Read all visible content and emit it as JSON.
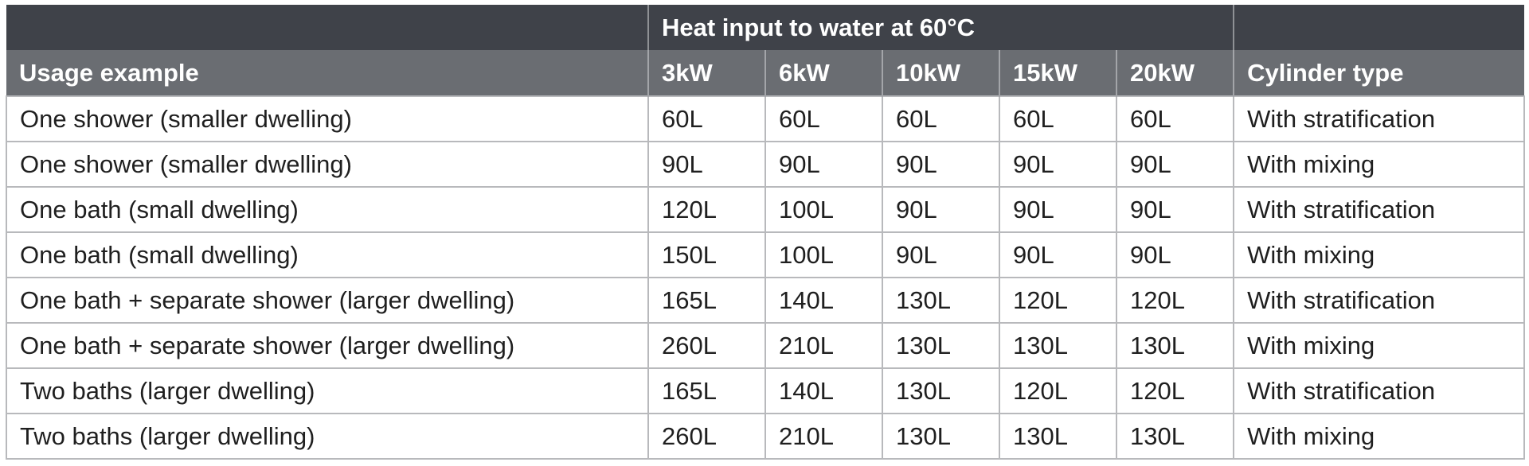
{
  "table": {
    "group_header": {
      "left": "",
      "heat_input": "Heat input to water at 60°C",
      "right": ""
    },
    "columns": [
      "Usage example",
      "3kW",
      "6kW",
      "10kW",
      "15kW",
      "20kW",
      "Cylinder type"
    ],
    "rows": [
      [
        "One shower (smaller dwelling)",
        "60L",
        "60L",
        "60L",
        "60L",
        "60L",
        "With stratification"
      ],
      [
        "One shower (smaller dwelling)",
        "90L",
        "90L",
        "90L",
        "90L",
        "90L",
        "With mixing"
      ],
      [
        "One bath (small dwelling)",
        "120L",
        "100L",
        "90L",
        "90L",
        "90L",
        "With stratification"
      ],
      [
        "One bath (small dwelling)",
        "150L",
        "100L",
        "90L",
        "90L",
        "90L",
        "With mixing"
      ],
      [
        "One bath + separate shower (larger dwelling)",
        "165L",
        "140L",
        "130L",
        "120L",
        "120L",
        "With stratification"
      ],
      [
        "One bath + separate shower (larger dwelling)",
        "260L",
        "210L",
        "130L",
        "130L",
        "130L",
        "With mixing"
      ],
      [
        "Two baths (larger dwelling)",
        "165L",
        "140L",
        "130L",
        "120L",
        "120L",
        "With stratification"
      ],
      [
        "Two baths (larger dwelling)",
        "260L",
        "210L",
        "130L",
        "130L",
        "130L",
        "With mixing"
      ]
    ]
  }
}
